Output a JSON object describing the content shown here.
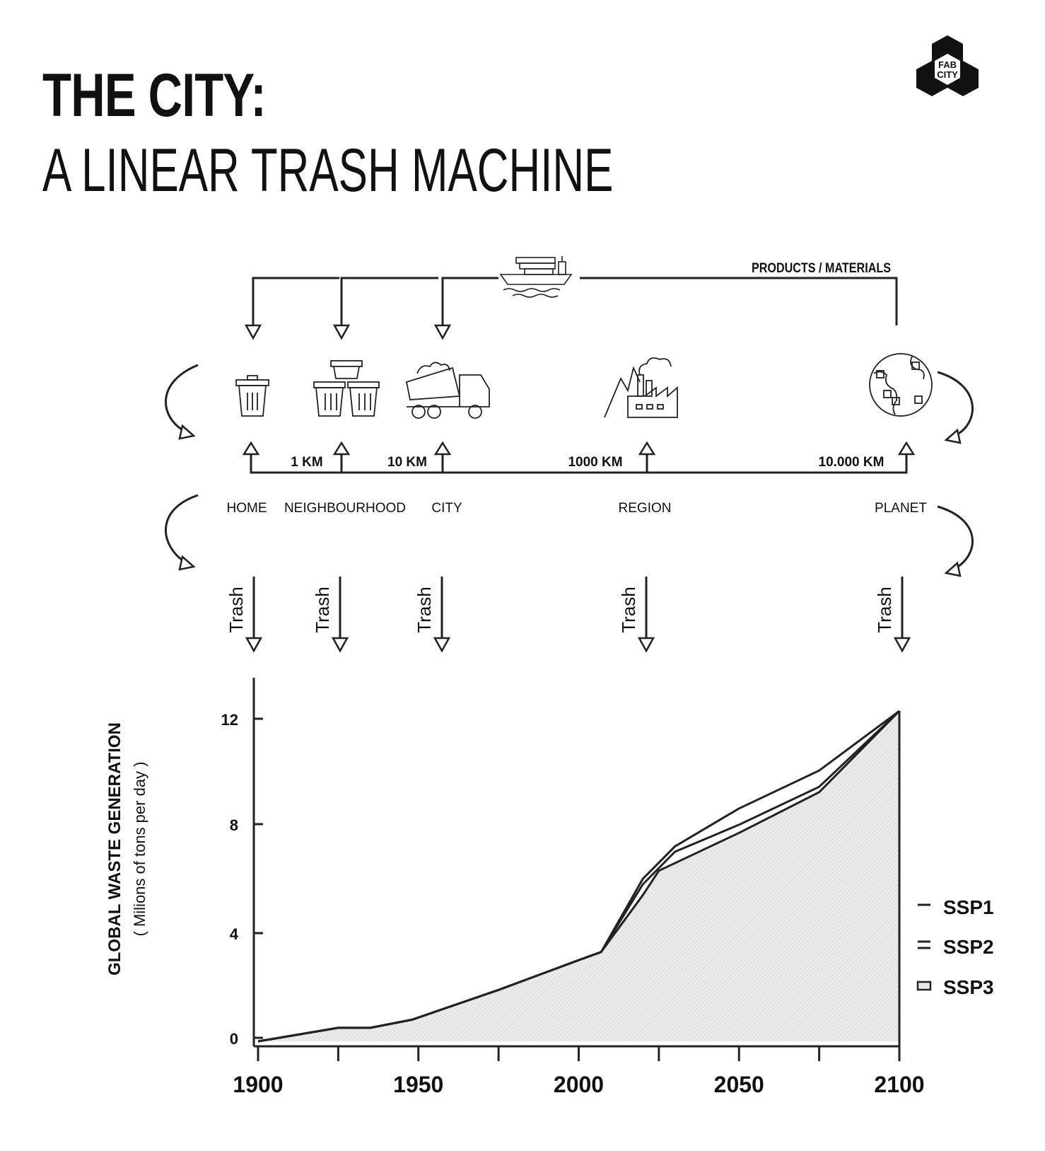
{
  "title": {
    "line1": "THE CITY:",
    "line2": "A LINEAR TRASH MACHINE"
  },
  "logo": {
    "line1": "FAB",
    "line2": "CITY"
  },
  "flow": {
    "top_label": "PRODUCTS / MATERIALS",
    "locations": [
      "HOME",
      "NEIGHBOURHOOD",
      "CITY",
      "REGION",
      "PLANET"
    ],
    "distances": [
      "1 KM",
      "10 KM",
      "1000 KM",
      "10.000 KM"
    ],
    "trash_label": "Trash",
    "icons": [
      "trash-bin-icon",
      "trash-bins-group-icon",
      "dump-truck-icon",
      "factory-icon",
      "globe-trash-icon",
      "cargo-ship-icon"
    ]
  },
  "chart_data": {
    "type": "area",
    "ylabel": "GLOBAL WASTE GENERATION",
    "ylabel_sub": "( Milions of tons per day )",
    "xlabel": "",
    "x_ticks": [
      1900,
      1950,
      2000,
      2050,
      2100
    ],
    "y_ticks": [
      0,
      4,
      8,
      12
    ],
    "xlim": [
      1900,
      2100
    ],
    "ylim": [
      -0.2,
      13.5
    ],
    "legend_position": "right",
    "series": [
      {
        "name": "SSP1",
        "points": [
          [
            1900,
            0
          ],
          [
            1925,
            0.5
          ],
          [
            1935,
            0.5
          ],
          [
            1948,
            0.8
          ],
          [
            1975,
            1.9
          ],
          [
            2000,
            3.0
          ],
          [
            2007,
            3.3
          ],
          [
            2020,
            6.0
          ],
          [
            2030,
            7.2
          ],
          [
            2050,
            8.6
          ],
          [
            2075,
            10.0
          ],
          [
            2100,
            12.2
          ]
        ]
      },
      {
        "name": "SSP2",
        "points": [
          [
            1900,
            0
          ],
          [
            1925,
            0.5
          ],
          [
            1935,
            0.5
          ],
          [
            1948,
            0.8
          ],
          [
            1975,
            1.9
          ],
          [
            2000,
            3.0
          ],
          [
            2007,
            3.3
          ],
          [
            2020,
            5.8
          ],
          [
            2030,
            7.0
          ],
          [
            2050,
            8.0
          ],
          [
            2075,
            9.4
          ],
          [
            2100,
            12.2
          ]
        ]
      },
      {
        "name": "SSP3",
        "points": [
          [
            1900,
            0
          ],
          [
            1925,
            0.5
          ],
          [
            1935,
            0.5
          ],
          [
            1948,
            0.8
          ],
          [
            1975,
            1.9
          ],
          [
            2000,
            3.0
          ],
          [
            2007,
            3.3
          ],
          [
            2020,
            5.4
          ],
          [
            2025,
            6.3
          ],
          [
            2050,
            7.7
          ],
          [
            2075,
            9.2
          ],
          [
            2100,
            12.2
          ]
        ]
      }
    ]
  }
}
